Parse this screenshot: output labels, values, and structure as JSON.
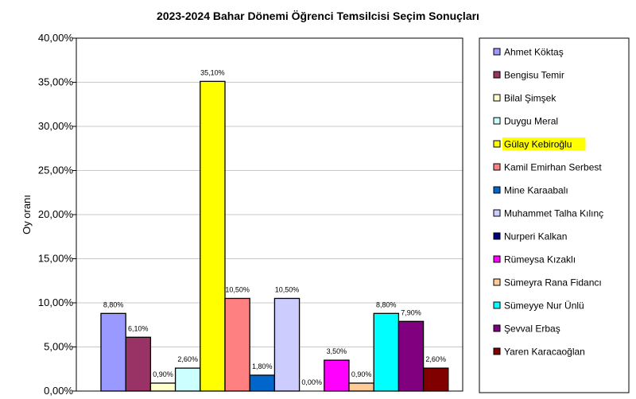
{
  "chart_data": {
    "type": "bar",
    "title": "2023-2024 Bahar Dönemi Öğrenci Temsilcisi Seçim Sonuçları",
    "xlabel": "",
    "ylabel": "Oy oranı",
    "ylim": [
      0,
      40
    ],
    "yticks": [
      "0,00%",
      "5,00%",
      "10,00%",
      "15,00%",
      "20,00%",
      "25,00%",
      "30,00%",
      "35,00%",
      "40,00%"
    ],
    "grid": true,
    "legend_position": "right",
    "highlighted_legend_entry": "Gülay Kebiroğlu",
    "highlight_color": "#ffff00",
    "series": [
      {
        "name": "Ahmet Köktaş",
        "value": 8.8,
        "label": "8,80%",
        "color": "#9999ff"
      },
      {
        "name": "Bengisu Temir",
        "value": 6.1,
        "label": "6,10%",
        "color": "#993366"
      },
      {
        "name": "Bilal Şimşek",
        "value": 0.9,
        "label": "0,90%",
        "color": "#ffffcc"
      },
      {
        "name": "Duygu Meral",
        "value": 2.6,
        "label": "2,60%",
        "color": "#ccffff"
      },
      {
        "name": "Gülay Kebiroğlu",
        "value": 35.1,
        "label": "35,10%",
        "color": "#ffff00"
      },
      {
        "name": "Kamil Emirhan Serbest",
        "value": 10.5,
        "label": "10,50%",
        "color": "#ff8080"
      },
      {
        "name": "Mine Karaabalı",
        "value": 1.8,
        "label": "1,80%",
        "color": "#0066cc"
      },
      {
        "name": "Muhammet Talha Kılınç",
        "value": 10.5,
        "label": "10,50%",
        "color": "#ccccff"
      },
      {
        "name": "Nurperi Kalkan",
        "value": 0.0,
        "label": "0,00%",
        "color": "#000080"
      },
      {
        "name": "Rümeysa Kızaklı",
        "value": 3.5,
        "label": "3,50%",
        "color": "#ff00ff"
      },
      {
        "name": "Sümeyra Rana Fidancı",
        "value": 0.9,
        "label": "0,90%",
        "color": "#ffcc99"
      },
      {
        "name": "Sümeyye Nur Ünlü",
        "value": 8.8,
        "label": "8,80%",
        "color": "#00ffff"
      },
      {
        "name": "Şevval Erbaş",
        "value": 7.9,
        "label": "7,90%",
        "color": "#800080"
      },
      {
        "name": "Yaren Karacaoğlan",
        "value": 2.6,
        "label": "2,60%",
        "color": "#800000"
      }
    ]
  }
}
